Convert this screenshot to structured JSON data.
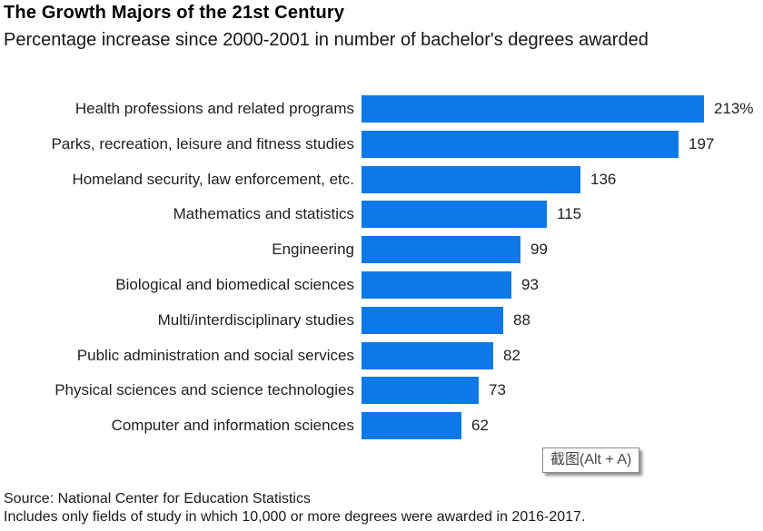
{
  "header": {
    "title": "The Growth Majors of the 21st Century",
    "subtitle": "Percentage increase since 2000-2001 in number of bachelor's degrees awarded"
  },
  "chart_data": {
    "type": "bar",
    "orientation": "horizontal",
    "title": "The Growth Majors of the 21st Century",
    "subtitle": "Percentage increase since 2000-2001 in number of bachelor's degrees awarded",
    "categories": [
      "Health professions and related programs",
      "Parks, recreation, leisure and fitness studies",
      "Homeland security, law enforcement, etc.",
      "Mathematics and statistics",
      "Engineering",
      "Biological and biomedical sciences",
      "Multi/interdisciplinary studies",
      "Public administration and social services",
      "Physical sciences and science technologies",
      "Computer and information sciences"
    ],
    "values": [
      213,
      197,
      136,
      115,
      99,
      93,
      88,
      82,
      73,
      62
    ],
    "value_labels": [
      "213%",
      "197",
      "136",
      "115",
      "99",
      "93",
      "88",
      "82",
      "73",
      "62"
    ],
    "xlabel": "",
    "ylabel": "",
    "axis_max": 213,
    "grid": false,
    "legend": false,
    "bar_color": "#0d79e8",
    "value_label_position": "right-of-bar"
  },
  "overlay": {
    "screenshot_badge": "截图(Alt + A)"
  },
  "footer": {
    "source": "Source: National Center for Education Statistics",
    "note": "Includes only fields of study in which 10,000 or more degrees were awarded in 2016-2017."
  }
}
